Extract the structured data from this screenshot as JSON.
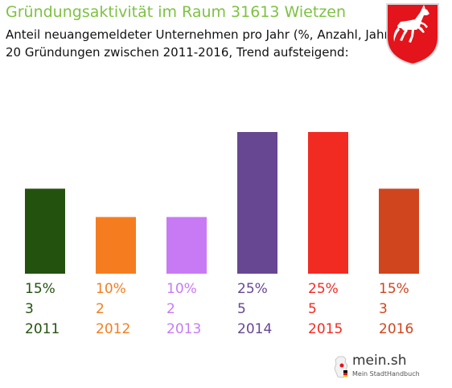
{
  "header": {
    "title": "Gründungsaktivität im Raum 31613 Wietzen",
    "subtitle_line1": "Anteil neuangemeldeter Unternehmen pro Jahr (%, Anzahl, Jahr)",
    "subtitle_line2": "20 Gründungen zwischen 2011-2016, Trend aufsteigend:"
  },
  "colors": {
    "title": "#7dc242",
    "crest_background": "#e3141b",
    "crest_horse": "#ffffff"
  },
  "chart_data": {
    "type": "bar",
    "categories": [
      "2011",
      "2012",
      "2013",
      "2014",
      "2015",
      "2016"
    ],
    "values": [
      3,
      2,
      2,
      5,
      5,
      3
    ],
    "percent_labels": [
      "15%",
      "10%",
      "10%",
      "25%",
      "25%",
      "15%"
    ],
    "colors": [
      "#23520f",
      "#f57d20",
      "#c87af5",
      "#674791",
      "#f22b22",
      "#d0451e"
    ],
    "title": "Gründungsaktivität im Raum 31613 Wietzen",
    "xlabel": "",
    "ylabel": "",
    "ylim": [
      0,
      5
    ],
    "grid": false,
    "legend": "none"
  },
  "branding": {
    "logo_name": "mein.sh",
    "logo_tagline": "Mein StadtHandbuch"
  }
}
